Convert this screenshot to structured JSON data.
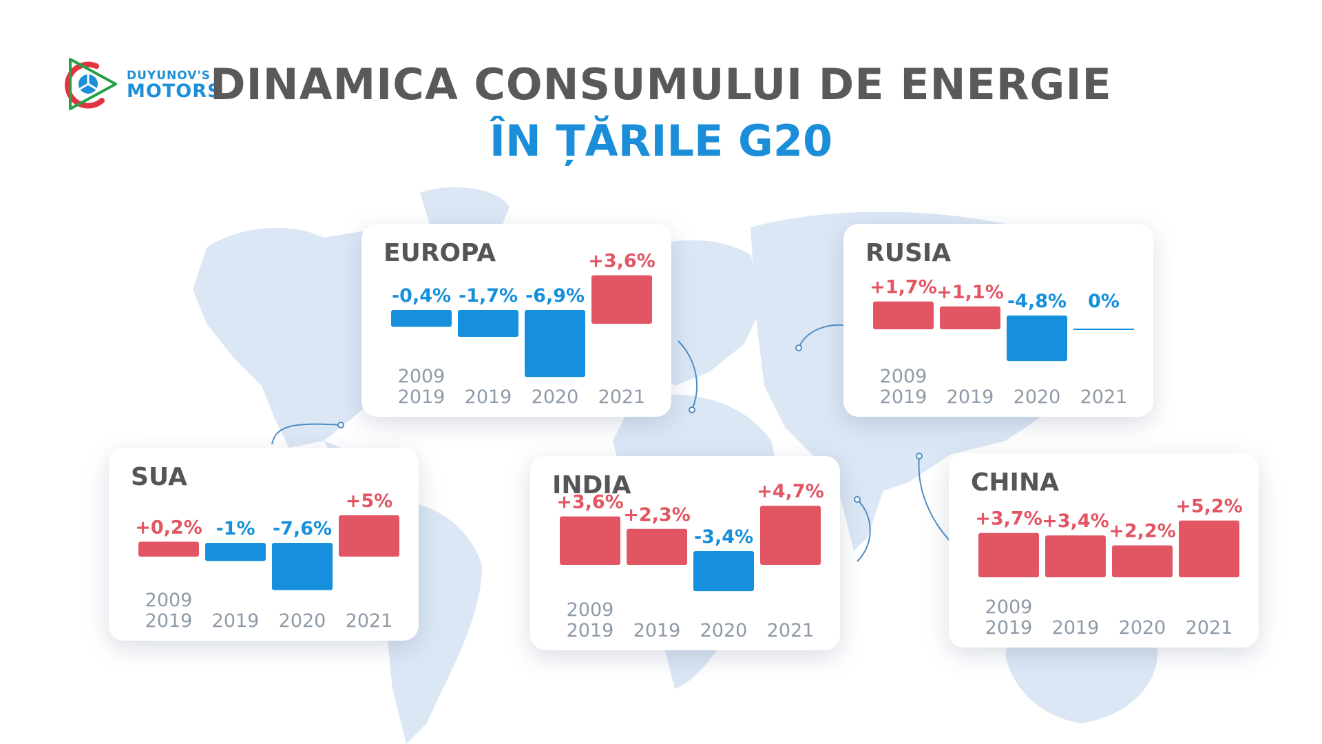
{
  "header": {
    "logo_line1": "DUYUNOV'S",
    "logo_line2": "MOTORS",
    "title_line1": "DINAMICA CONSUMULUI DE ENERGIE",
    "title_line2": "ÎN ȚĂRILE G20"
  },
  "colors": {
    "positive": "#e25563",
    "negative": "#1690dc",
    "title_gray": "#595959",
    "title_blue": "#1a8ed8",
    "map": "#dbe7f5",
    "tick_label": "#8e9aa7"
  },
  "chart_data": [
    {
      "type": "bar",
      "title": "EUROPA",
      "categories": [
        [
          "2009",
          "2019"
        ],
        [
          "2019"
        ],
        [
          "2020"
        ],
        [
          "2021"
        ]
      ],
      "values": [
        -0.4,
        -1.7,
        -6.9,
        3.6
      ],
      "labels": [
        "-0,4%",
        "-1,7%",
        "-6,9%",
        "+3,6%"
      ],
      "ylabel": "",
      "xlabel": ""
    },
    {
      "type": "bar",
      "title": "RUSIA",
      "categories": [
        [
          "2009",
          "2019"
        ],
        [
          "2019"
        ],
        [
          "2020"
        ],
        [
          "2021"
        ]
      ],
      "values": [
        1.7,
        1.1,
        -4.8,
        0
      ],
      "labels": [
        "+1,7%",
        "+1,1%",
        "-4,8%",
        "0%"
      ],
      "ylabel": "",
      "xlabel": ""
    },
    {
      "type": "bar",
      "title": "SUA",
      "categories": [
        [
          "2009",
          "2019"
        ],
        [
          "2019"
        ],
        [
          "2020"
        ],
        [
          "2021"
        ]
      ],
      "values": [
        0.2,
        -1,
        -7.6,
        5
      ],
      "labels": [
        "+0,2%",
        "-1%",
        "-7,6%",
        "+5%"
      ],
      "ylabel": "",
      "xlabel": ""
    },
    {
      "type": "bar",
      "title": "INDIA",
      "categories": [
        [
          "2009",
          "2019"
        ],
        [
          "2019"
        ],
        [
          "2020"
        ],
        [
          "2021"
        ]
      ],
      "values": [
        3.6,
        2.3,
        -3.4,
        4.7
      ],
      "labels": [
        "+3,6%",
        "+2,3%",
        "-3,4%",
        "+4,7%"
      ],
      "ylabel": "",
      "xlabel": ""
    },
    {
      "type": "bar",
      "title": "CHINA",
      "categories": [
        [
          "2009",
          "2019"
        ],
        [
          "2019"
        ],
        [
          "2020"
        ],
        [
          "2021"
        ]
      ],
      "values": [
        3.7,
        3.4,
        2.2,
        5.2
      ],
      "labels": [
        "+3,7%",
        "+3,4%",
        "+2,2%",
        "+5,2%"
      ],
      "ylabel": "",
      "xlabel": ""
    }
  ]
}
